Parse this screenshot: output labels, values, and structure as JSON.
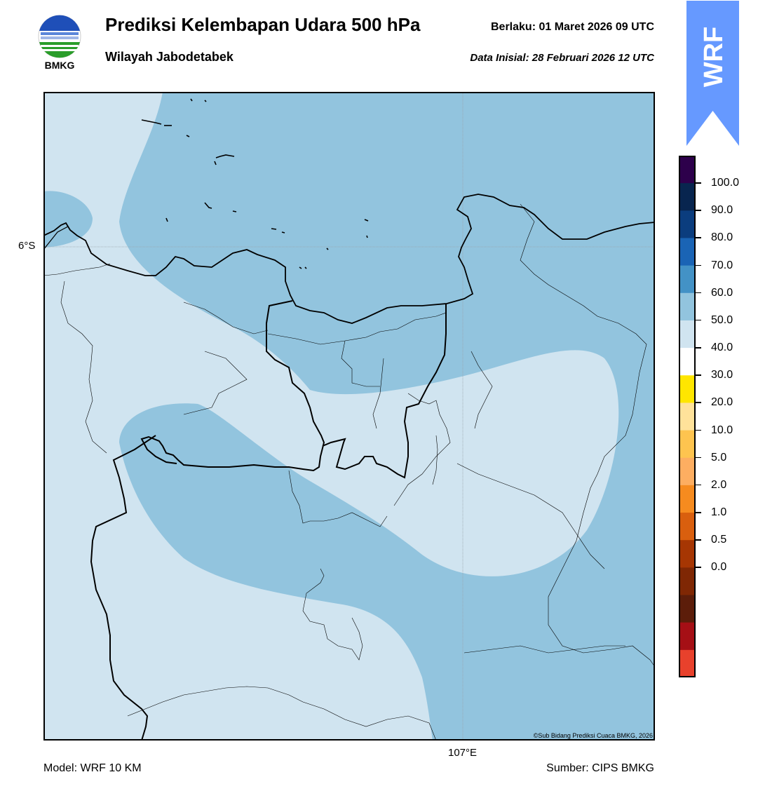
{
  "header": {
    "title": "Prediksi Kelembapan Udara 500 hPa",
    "subtitle": "Wilayah Jabodetabek",
    "valid_label": "Berlaku:  01 Maret 2026 09 UTC",
    "init_label": "Data Inisial:  28 Februari 2026 12 UTC"
  },
  "logo": {
    "text": "BMKG",
    "icon": "bmkg-logo"
  },
  "badge": {
    "text": "WRF",
    "color": "#6699ff"
  },
  "map": {
    "lat_label": "6°S",
    "lon_label": "107°E",
    "copyright": "©Sub Bidang Prediksi Cuaca BMKG, 2026",
    "fill_colors": {
      "band_50_60": "#d0e4f0",
      "band_60_70": "#92c4de"
    }
  },
  "colorbar": {
    "ticks": [
      "100.0",
      "90.0",
      "80.0",
      "70.0",
      "60.0",
      "50.0",
      "40.0",
      "30.0",
      "20.0",
      "10.0",
      "5.0",
      "2.0",
      "1.0",
      "0.5",
      "0.0"
    ],
    "colors_top_to_bottom": [
      "#2d004b",
      "#08254f",
      "#0b3d7e",
      "#1a64b5",
      "#4392c6",
      "#92c4de",
      "#d0e4f0",
      "#ffffff",
      "#ffe600",
      "#ffe29a",
      "#fec44f",
      "#fdae61",
      "#f68b1f",
      "#d95f0e",
      "#a63603",
      "#7f2704",
      "#5c1d0a",
      "#a50f15",
      "#e8412c"
    ]
  },
  "footer": {
    "model": "Model: WRF 10 KM",
    "source": "Sumber: CIPS BMKG"
  }
}
